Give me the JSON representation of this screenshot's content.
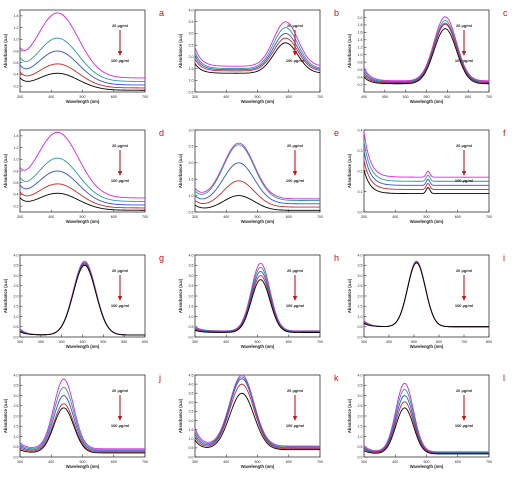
{
  "colors": {
    "panel_letter": "#d01010",
    "arrow": "#c81414",
    "series": [
      "#e020e0",
      "#2a9a9a",
      "#3050e0",
      "#c82828",
      "#000000"
    ]
  },
  "chart_data": [
    {
      "letter": "a",
      "type": "line",
      "xlabel": "Wavelength (nm)",
      "ylabel": "Absorbance (a.u)",
      "xlim": [
        300,
        700
      ],
      "xticks": [
        300,
        400,
        500,
        600,
        700
      ],
      "ylim": [
        0.1,
        1.5
      ],
      "yticks": [
        0.2,
        0.4,
        0.6,
        0.8,
        1.0,
        1.2,
        1.4
      ],
      "conc_top": "20 µg/ml",
      "conc_bottom": "100 µg/ml",
      "peak": 420,
      "width": 95,
      "peak_values": [
        1.45,
        1.02,
        0.8,
        0.58,
        0.42
      ],
      "base_values": [
        0.34,
        0.28,
        0.22,
        0.17,
        0.13
      ],
      "short_rise": 0.3
    },
    {
      "letter": "b",
      "type": "line",
      "xlabel": "Wavelength (nm)",
      "ylabel": "Absorbance (a.u)",
      "xlim": [
        300,
        700
      ],
      "xticks": [
        300,
        400,
        500,
        600,
        700
      ],
      "ylim": [
        0.5,
        4.0
      ],
      "yticks": [
        0.5,
        1.0,
        1.5,
        2.0,
        2.5,
        3.0,
        3.5,
        4.0
      ],
      "conc_top": "20 µg/ml",
      "conc_bottom": "100 µg/ml",
      "peak": 590,
      "width": 55,
      "peak_values": [
        3.5,
        3.25,
        3.0,
        2.8,
        2.6
      ],
      "base_values": [
        1.6,
        1.5,
        1.45,
        1.4,
        1.3
      ],
      "short_rise": 0.8
    },
    {
      "letter": "c",
      "type": "line",
      "xlabel": "Wavelength (nm)",
      "ylabel": "Absorbance (a.u)",
      "xlim": [
        400,
        700
      ],
      "xticks": [
        400,
        450,
        500,
        550,
        600,
        650,
        700
      ],
      "ylim": [
        0.0,
        2.2
      ],
      "yticks": [
        0.2,
        0.4,
        0.6,
        0.8,
        1.0,
        1.2,
        1.4,
        1.6,
        1.8,
        2.0
      ],
      "conc_top": "20 µg/ml",
      "conc_bottom": "100 µg/ml",
      "peak": 595,
      "width": 38,
      "peak_values": [
        2.02,
        1.92,
        1.85,
        1.82,
        1.7
      ],
      "base_values": [
        0.3,
        0.28,
        0.26,
        0.24,
        0.22
      ],
      "short_rise": 0.35
    },
    {
      "letter": "d",
      "type": "line",
      "xlabel": "Wavelength (nm)",
      "ylabel": "Absorbance (a.u)",
      "xlim": [
        300,
        700
      ],
      "xticks": [
        300,
        400,
        500,
        600,
        700
      ],
      "ylim": [
        0.1,
        1.5
      ],
      "yticks": [
        0.2,
        0.4,
        0.6,
        0.8,
        1.0,
        1.2,
        1.4
      ],
      "conc_top": "20 µg/ml",
      "conc_bottom": "100 µg/ml",
      "peak": 420,
      "width": 95,
      "peak_values": [
        1.46,
        1.02,
        0.8,
        0.58,
        0.42
      ],
      "base_values": [
        0.34,
        0.28,
        0.22,
        0.17,
        0.13
      ],
      "short_rise": 0.3
    },
    {
      "letter": "e",
      "type": "line",
      "xlabel": "Wavelength (nm)",
      "ylabel": "Absorbance (a.u)",
      "xlim": [
        300,
        700
      ],
      "xticks": [
        300,
        400,
        500,
        600,
        700
      ],
      "ylim": [
        0.5,
        3.0
      ],
      "yticks": [
        0.5,
        1.0,
        1.5,
        2.0,
        2.5,
        3.0
      ],
      "conc_top": "20 µg/ml",
      "conc_bottom": "100 µg/ml",
      "peak": 440,
      "width": 70,
      "peak_values": [
        2.6,
        2.55,
        2.0,
        1.45,
        1.0
      ],
      "base_values": [
        0.9,
        0.85,
        0.75,
        0.65,
        0.55
      ],
      "short_rise": 0.3
    },
    {
      "letter": "f",
      "type": "line",
      "xlabel": "Wavelength (nm)",
      "ylabel": "Absorbance (a.u)",
      "xlim": [
        300,
        700
      ],
      "xticks": [
        300,
        400,
        500,
        600,
        700
      ],
      "ylim": [
        0.0,
        0.4
      ],
      "yticks": [
        0.0,
        0.1,
        0.2,
        0.3,
        0.4
      ],
      "conc_top": "20 µg/ml",
      "conc_bottom": "100 µg/ml",
      "peak": 505,
      "width": 8,
      "peak_values": [
        0.2,
        0.18,
        0.16,
        0.14,
        0.12
      ],
      "base_values": [
        0.17,
        0.15,
        0.13,
        0.11,
        0.09
      ],
      "short_rise": 0.22
    },
    {
      "letter": "g",
      "type": "line",
      "xlabel": "Wavelength (nm)",
      "ylabel": "Absorbance (a.u)",
      "xlim": [
        300,
        600
      ],
      "xticks": [
        300,
        350,
        400,
        450,
        500,
        550,
        600
      ],
      "ylim": [
        0.0,
        4.0
      ],
      "yticks": [
        0.0,
        0.5,
        1.0,
        1.5,
        2.0,
        2.5,
        3.0,
        3.5,
        4.0
      ],
      "conc_top": "20 µg/ml",
      "conc_bottom": "100 µg/ml",
      "peak": 455,
      "width": 38,
      "peak_values": [
        3.7,
        3.65,
        3.6,
        3.55,
        3.5
      ],
      "base_values": [
        0.1,
        0.1,
        0.1,
        0.1,
        0.1
      ],
      "short_rise": 0.3
    },
    {
      "letter": "h",
      "type": "line",
      "xlabel": "Wavelength (nm)",
      "ylabel": "Absorbance (a.u)",
      "xlim": [
        300,
        700
      ],
      "xticks": [
        300,
        400,
        500,
        600,
        700
      ],
      "ylim": [
        0.0,
        4.0
      ],
      "yticks": [
        0.0,
        0.5,
        1.0,
        1.5,
        2.0,
        2.5,
        3.0,
        3.5,
        4.0
      ],
      "conc_top": "20 µg/ml",
      "conc_bottom": "100 µg/ml",
      "peak": 510,
      "width": 42,
      "peak_values": [
        3.6,
        3.4,
        3.2,
        3.0,
        2.8
      ],
      "base_values": [
        0.3,
        0.28,
        0.26,
        0.24,
        0.22
      ],
      "short_rise": 0.2
    },
    {
      "letter": "i",
      "type": "line",
      "xlabel": "Wavelength (nm)",
      "ylabel": "Absorbance (a.u)",
      "xlim": [
        300,
        800
      ],
      "xticks": [
        300,
        400,
        500,
        600,
        700,
        800
      ],
      "ylim": [
        0.0,
        4.0
      ],
      "yticks": [
        0.0,
        0.5,
        1.0,
        1.5,
        2.0,
        2.5,
        3.0,
        3.5,
        4.0
      ],
      "conc_top": "20 µg/ml",
      "conc_bottom": "100 µg/ml",
      "peak": 510,
      "width": 50,
      "peak_values": [
        3.7,
        3.68,
        3.66,
        3.64,
        3.62
      ],
      "base_values": [
        0.5,
        0.5,
        0.5,
        0.5,
        0.5
      ],
      "short_rise": 0.3
    },
    {
      "letter": "j",
      "type": "line",
      "xlabel": "Wavelength (nm)",
      "ylabel": "Absorbance (a.u)",
      "xlim": [
        300,
        700
      ],
      "xticks": [
        300,
        400,
        500,
        600,
        700
      ],
      "ylim": [
        0.0,
        4.0
      ],
      "yticks": [
        0.0,
        0.5,
        1.0,
        1.5,
        2.0,
        2.5,
        3.0,
        3.5,
        4.0
      ],
      "conc_top": "20 µg/ml",
      "conc_bottom": "100 µg/ml",
      "peak": 440,
      "width": 45,
      "peak_values": [
        3.8,
        3.4,
        3.0,
        2.6,
        2.4
      ],
      "base_values": [
        0.4,
        0.35,
        0.3,
        0.25,
        0.2
      ],
      "short_rise": 0.3
    },
    {
      "letter": "k",
      "type": "line",
      "xlabel": "Wavelength (nm)",
      "ylabel": "Absorbance (a.u)",
      "xlim": [
        300,
        700
      ],
      "xticks": [
        300,
        400,
        500,
        600,
        700
      ],
      "ylim": [
        0.0,
        4.5
      ],
      "yticks": [
        0.0,
        0.5,
        1.0,
        1.5,
        2.0,
        2.5,
        3.0,
        3.5,
        4.0,
        4.5
      ],
      "conc_top": "20 µg/ml",
      "conc_bottom": "100 µg/ml",
      "peak": 450,
      "width": 55,
      "peak_values": [
        4.5,
        4.4,
        4.3,
        4.0,
        3.5
      ],
      "base_values": [
        0.6,
        0.55,
        0.5,
        0.45,
        0.4
      ],
      "short_rise": 1.0
    },
    {
      "letter": "l",
      "type": "line",
      "xlabel": "Wavelength (nm)",
      "ylabel": "Absorbance (a.u)",
      "xlim": [
        300,
        700
      ],
      "xticks": [
        300,
        400,
        500,
        600,
        700
      ],
      "ylim": [
        0.0,
        4.0
      ],
      "yticks": [
        0.0,
        0.5,
        1.0,
        1.5,
        2.0,
        2.5,
        3.0,
        3.5,
        4.0
      ],
      "conc_top": "20 µg/ml",
      "conc_bottom": "100 µg/ml",
      "peak": 430,
      "width": 40,
      "peak_values": [
        3.6,
        3.3,
        3.0,
        2.7,
        2.4
      ],
      "base_values": [
        0.25,
        0.22,
        0.2,
        0.18,
        0.15
      ],
      "short_rise": 0.3
    }
  ]
}
